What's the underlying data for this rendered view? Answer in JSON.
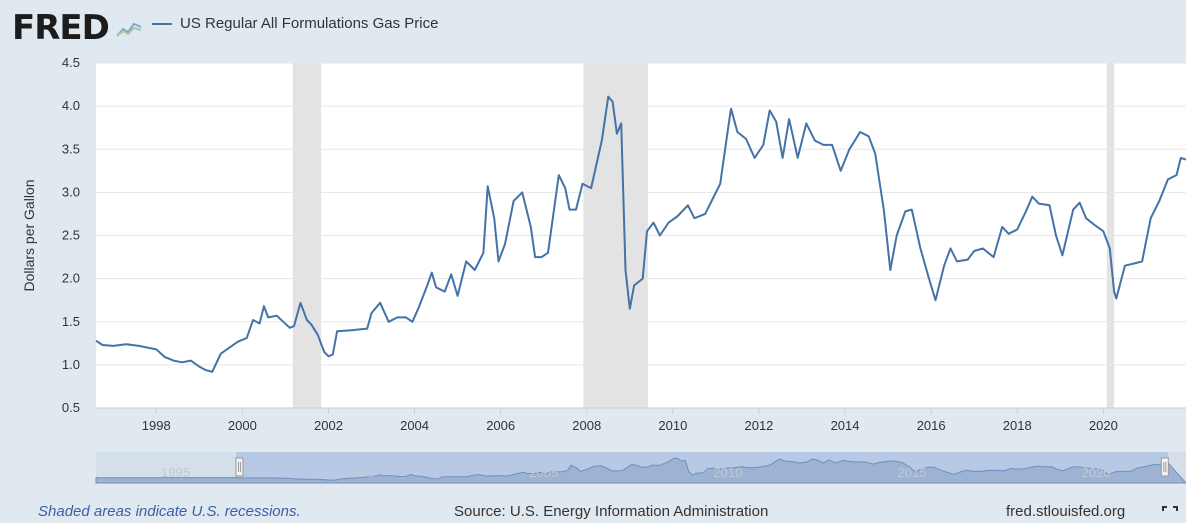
{
  "header": {
    "logo": "FRED",
    "legend_label": "US Regular All Formulations Gas Price",
    "series_color": "#4572a7"
  },
  "footer": {
    "recession_note": "Shaded areas indicate U.S. recessions.",
    "source": "Source: U.S. Energy Information Administration",
    "site": "fred.stlouisfed.org"
  },
  "chart_data": {
    "type": "line",
    "ylabel": "Dollars per Gallon",
    "xlabel": "",
    "ylim": [
      0.5,
      4.5
    ],
    "xlim": [
      1996.6,
      2021.92
    ],
    "y_ticks": [
      "0.5",
      "1.0",
      "1.5",
      "2.0",
      "2.5",
      "3.0",
      "3.5",
      "4.0",
      "4.5"
    ],
    "x_ticks": [
      "1998",
      "2000",
      "2002",
      "2004",
      "2006",
      "2008",
      "2010",
      "2012",
      "2014",
      "2016",
      "2018",
      "2020"
    ],
    "grid": true,
    "legend": "top-left",
    "recessions": [
      [
        2001.17,
        2001.83
      ],
      [
        2007.92,
        2009.42
      ],
      [
        2020.08,
        2020.25
      ]
    ],
    "navigator": {
      "labels": [
        "1995",
        "2000",
        "2005",
        "2010",
        "2015",
        "2020"
      ],
      "selected_range": [
        "1996",
        "2021"
      ]
    },
    "series": [
      {
        "name": "US Regular All Formulations Gas Price",
        "points": [
          [
            1996.6,
            1.28
          ],
          [
            1996.75,
            1.23
          ],
          [
            1997.0,
            1.22
          ],
          [
            1997.3,
            1.24
          ],
          [
            1997.6,
            1.22
          ],
          [
            1998.0,
            1.18
          ],
          [
            1998.2,
            1.09
          ],
          [
            1998.4,
            1.05
          ],
          [
            1998.6,
            1.03
          ],
          [
            1998.8,
            1.05
          ],
          [
            1999.0,
            0.98
          ],
          [
            1999.15,
            0.94
          ],
          [
            1999.3,
            0.92
          ],
          [
            1999.5,
            1.13
          ],
          [
            1999.7,
            1.2
          ],
          [
            1999.9,
            1.27
          ],
          [
            2000.1,
            1.31
          ],
          [
            2000.25,
            1.52
          ],
          [
            2000.4,
            1.48
          ],
          [
            2000.5,
            1.68
          ],
          [
            2000.6,
            1.55
          ],
          [
            2000.8,
            1.57
          ],
          [
            2000.95,
            1.5
          ],
          [
            2001.1,
            1.43
          ],
          [
            2001.2,
            1.45
          ],
          [
            2001.35,
            1.72
          ],
          [
            2001.5,
            1.52
          ],
          [
            2001.6,
            1.47
          ],
          [
            2001.75,
            1.35
          ],
          [
            2001.9,
            1.15
          ],
          [
            2002.0,
            1.1
          ],
          [
            2002.1,
            1.12
          ],
          [
            2002.2,
            1.39
          ],
          [
            2002.5,
            1.4
          ],
          [
            2002.7,
            1.41
          ],
          [
            2002.9,
            1.42
          ],
          [
            2003.0,
            1.6
          ],
          [
            2003.2,
            1.72
          ],
          [
            2003.4,
            1.5
          ],
          [
            2003.6,
            1.55
          ],
          [
            2003.8,
            1.55
          ],
          [
            2003.95,
            1.5
          ],
          [
            2004.1,
            1.67
          ],
          [
            2004.3,
            1.93
          ],
          [
            2004.4,
            2.07
          ],
          [
            2004.5,
            1.9
          ],
          [
            2004.7,
            1.85
          ],
          [
            2004.85,
            2.05
          ],
          [
            2005.0,
            1.8
          ],
          [
            2005.2,
            2.2
          ],
          [
            2005.4,
            2.1
          ],
          [
            2005.6,
            2.3
          ],
          [
            2005.7,
            3.07
          ],
          [
            2005.85,
            2.7
          ],
          [
            2005.95,
            2.2
          ],
          [
            2006.1,
            2.4
          ],
          [
            2006.3,
            2.9
          ],
          [
            2006.5,
            3.0
          ],
          [
            2006.7,
            2.6
          ],
          [
            2006.8,
            2.25
          ],
          [
            2006.95,
            2.25
          ],
          [
            2007.1,
            2.3
          ],
          [
            2007.35,
            3.2
          ],
          [
            2007.5,
            3.05
          ],
          [
            2007.6,
            2.8
          ],
          [
            2007.75,
            2.8
          ],
          [
            2007.9,
            3.1
          ],
          [
            2008.1,
            3.05
          ],
          [
            2008.35,
            3.6
          ],
          [
            2008.5,
            4.11
          ],
          [
            2008.6,
            4.05
          ],
          [
            2008.7,
            3.68
          ],
          [
            2008.8,
            3.8
          ],
          [
            2008.9,
            2.1
          ],
          [
            2009.0,
            1.65
          ],
          [
            2009.1,
            1.92
          ],
          [
            2009.3,
            2.0
          ],
          [
            2009.4,
            2.55
          ],
          [
            2009.55,
            2.65
          ],
          [
            2009.7,
            2.5
          ],
          [
            2009.9,
            2.65
          ],
          [
            2010.1,
            2.72
          ],
          [
            2010.35,
            2.85
          ],
          [
            2010.5,
            2.7
          ],
          [
            2010.75,
            2.75
          ],
          [
            2010.9,
            2.9
          ],
          [
            2011.1,
            3.1
          ],
          [
            2011.3,
            3.8
          ],
          [
            2011.35,
            3.97
          ],
          [
            2011.5,
            3.7
          ],
          [
            2011.7,
            3.62
          ],
          [
            2011.9,
            3.4
          ],
          [
            2012.1,
            3.55
          ],
          [
            2012.25,
            3.95
          ],
          [
            2012.4,
            3.82
          ],
          [
            2012.55,
            3.4
          ],
          [
            2012.7,
            3.85
          ],
          [
            2012.9,
            3.4
          ],
          [
            2013.1,
            3.8
          ],
          [
            2013.3,
            3.6
          ],
          [
            2013.5,
            3.55
          ],
          [
            2013.7,
            3.55
          ],
          [
            2013.9,
            3.25
          ],
          [
            2014.1,
            3.5
          ],
          [
            2014.35,
            3.7
          ],
          [
            2014.55,
            3.65
          ],
          [
            2014.7,
            3.45
          ],
          [
            2014.9,
            2.8
          ],
          [
            2015.05,
            2.1
          ],
          [
            2015.2,
            2.5
          ],
          [
            2015.4,
            2.78
          ],
          [
            2015.55,
            2.8
          ],
          [
            2015.75,
            2.35
          ],
          [
            2015.95,
            2.0
          ],
          [
            2016.1,
            1.75
          ],
          [
            2016.3,
            2.15
          ],
          [
            2016.45,
            2.35
          ],
          [
            2016.6,
            2.2
          ],
          [
            2016.85,
            2.22
          ],
          [
            2017.0,
            2.32
          ],
          [
            2017.2,
            2.35
          ],
          [
            2017.45,
            2.25
          ],
          [
            2017.65,
            2.6
          ],
          [
            2017.8,
            2.52
          ],
          [
            2018.0,
            2.57
          ],
          [
            2018.2,
            2.78
          ],
          [
            2018.35,
            2.95
          ],
          [
            2018.5,
            2.87
          ],
          [
            2018.75,
            2.85
          ],
          [
            2018.9,
            2.5
          ],
          [
            2019.05,
            2.27
          ],
          [
            2019.3,
            2.8
          ],
          [
            2019.45,
            2.88
          ],
          [
            2019.6,
            2.7
          ],
          [
            2019.8,
            2.62
          ],
          [
            2020.0,
            2.55
          ],
          [
            2020.15,
            2.35
          ],
          [
            2020.25,
            1.85
          ],
          [
            2020.3,
            1.77
          ],
          [
            2020.5,
            2.15
          ],
          [
            2020.75,
            2.18
          ],
          [
            2020.9,
            2.2
          ],
          [
            2021.1,
            2.7
          ],
          [
            2021.3,
            2.9
          ],
          [
            2021.5,
            3.15
          ],
          [
            2021.7,
            3.2
          ],
          [
            2021.8,
            3.4
          ],
          [
            2021.92,
            3.38
          ]
        ]
      }
    ]
  }
}
